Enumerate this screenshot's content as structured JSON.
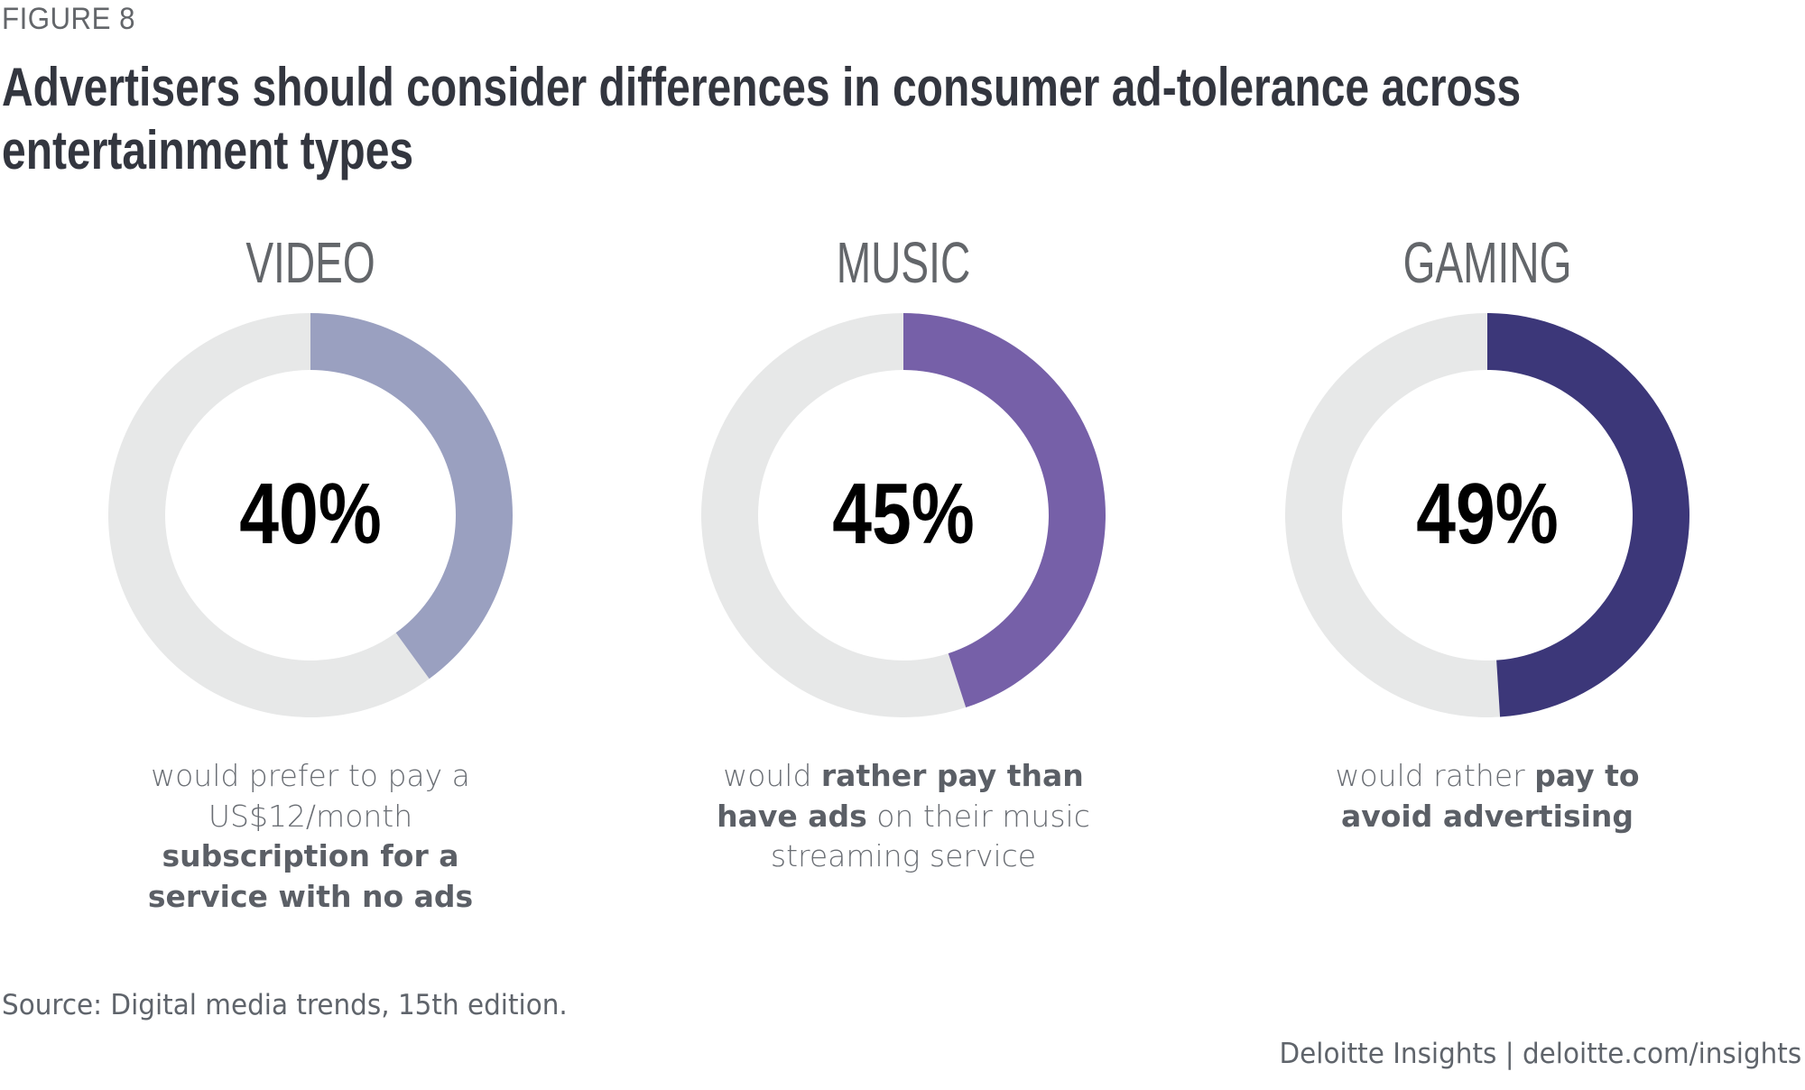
{
  "figure_label": "FIGURE 8",
  "title_lines": [
    "Advertisers should consider differences in consumer ad-tolerance across",
    "entertainment types"
  ],
  "chart_data": {
    "type": "pie",
    "variant": "donut",
    "title": "Advertisers should consider differences in consumer ad-tolerance across entertainment types",
    "unit": "%",
    "remainder_color": "#e7e8e8",
    "panels": [
      {
        "category": "VIDEO",
        "value": 40,
        "value_label": "40%",
        "color": "#9aa0c0",
        "caption": [
          {
            "text": "would prefer to pay a",
            "bold": false
          },
          {
            "text": "US$12/month",
            "bold": false
          },
          {
            "text": "subscription for a",
            "bold": true
          },
          {
            "text": "service with no ads",
            "bold": true
          }
        ]
      },
      {
        "category": "MUSIC",
        "value": 45,
        "value_label": "45%",
        "color": "#7660a8",
        "caption": [
          {
            "text": "would ",
            "bold": false
          },
          {
            "text": "rather pay than",
            "bold": true
          },
          {
            "text": "have ads",
            "bold": true
          },
          {
            "text": " on their music",
            "bold": false
          },
          {
            "text": "streaming service",
            "bold": false
          }
        ]
      },
      {
        "category": "GAMING",
        "value": 49,
        "value_label": "49%",
        "color": "#3c3779",
        "caption": [
          {
            "text": "would rather ",
            "bold": false
          },
          {
            "text": "pay to",
            "bold": true
          },
          {
            "text": "avoid advertising",
            "bold": true
          }
        ]
      }
    ]
  },
  "captions": {
    "video": {
      "line1": "would prefer to pay a",
      "line2": "US$12/month",
      "line3_bold": "subscription for a",
      "line4_bold": "service with no ads"
    },
    "music": {
      "line1_pre": "would ",
      "line1_bold": "rather pay than",
      "line2_bold": "have ads",
      "line2_post": " on their music",
      "line3": "streaming service"
    },
    "gaming": {
      "line1_pre": "would rather ",
      "line1_bold": "pay to",
      "line2_bold": "avoid advertising"
    }
  },
  "source": "Source: Digital media trends, 15th edition.",
  "footer": "Deloitte Insights | deloitte.com/insights"
}
